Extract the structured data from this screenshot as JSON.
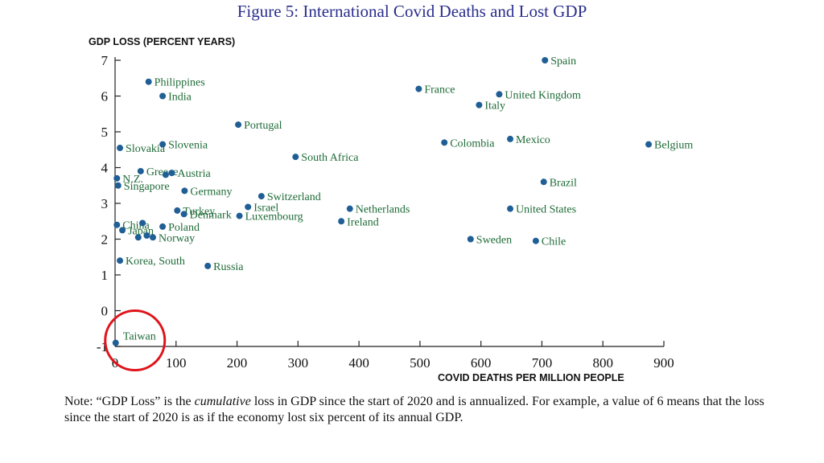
{
  "title": "Figure 5: International Covid Deaths and Lost GDP",
  "chart_data": {
    "type": "scatter",
    "title": "Figure 5: International Covid Deaths and Lost GDP",
    "xlabel": "COVID DEATHS PER MILLION PEOPLE",
    "ylabel": "GDP LOSS (PERCENT YEARS)",
    "xlim": [
      0,
      900
    ],
    "ylim": [
      -1,
      7
    ],
    "x_ticks": [
      "0",
      "100",
      "200",
      "300",
      "400",
      "500",
      "600",
      "700",
      "800",
      "900"
    ],
    "y_ticks": [
      "-1",
      "0",
      "1",
      "2",
      "3",
      "4",
      "5",
      "6",
      "7"
    ],
    "grid": false,
    "point_color": "#1f5f96",
    "label_color": "#1f6b38",
    "points": [
      {
        "label": "Spain",
        "x": 705,
        "y": 7.0
      },
      {
        "label": "Philippines",
        "x": 55,
        "y": 6.4
      },
      {
        "label": "India",
        "x": 78,
        "y": 6.0
      },
      {
        "label": "France",
        "x": 498,
        "y": 6.2
      },
      {
        "label": "United Kingdom",
        "x": 630,
        "y": 6.05
      },
      {
        "label": "Italy",
        "x": 597,
        "y": 5.75
      },
      {
        "label": "Portugal",
        "x": 202,
        "y": 5.2
      },
      {
        "label": "Slovakia",
        "x": 8,
        "y": 4.55
      },
      {
        "label": "Slovenia",
        "x": 78,
        "y": 4.65
      },
      {
        "label": "Colombia",
        "x": 540,
        "y": 4.7
      },
      {
        "label": "Mexico",
        "x": 648,
        "y": 4.8
      },
      {
        "label": "Belgium",
        "x": 875,
        "y": 4.65
      },
      {
        "label": "South Africa",
        "x": 296,
        "y": 4.3
      },
      {
        "label": "Greece",
        "x": 42,
        "y": 3.9
      },
      {
        "label": "Austria",
        "x": 93,
        "y": 3.85
      },
      {
        "label": "N.Z.",
        "x": 3,
        "y": 3.7
      },
      {
        "label": "Singapore",
        "x": 5,
        "y": 3.5
      },
      {
        "label": "Brazil",
        "x": 703,
        "y": 3.6
      },
      {
        "label": "Germany",
        "x": 114,
        "y": 3.35
      },
      {
        "label": "Switzerland",
        "x": 240,
        "y": 3.2
      },
      {
        "label": "Israel",
        "x": 218,
        "y": 2.9
      },
      {
        "label": "Netherlands",
        "x": 385,
        "y": 2.85
      },
      {
        "label": "United States",
        "x": 648,
        "y": 2.85
      },
      {
        "label": "Turkey",
        "x": 102,
        "y": 2.8
      },
      {
        "label": "Denmark",
        "x": 113,
        "y": 2.7
      },
      {
        "label": "Luxembourg",
        "x": 204,
        "y": 2.65
      },
      {
        "label": "Ireland",
        "x": 371,
        "y": 2.5
      },
      {
        "label": "China",
        "x": 3,
        "y": 2.4
      },
      {
        "label": "Poland",
        "x": 78,
        "y": 2.35
      },
      {
        "label": "Japan",
        "x": 12,
        "y": 2.25
      },
      {
        "label": "Norway",
        "x": 62,
        "y": 2.05
      },
      {
        "label": "Sweden",
        "x": 583,
        "y": 2.0
      },
      {
        "label": "Chile",
        "x": 690,
        "y": 1.95
      },
      {
        "label": "Korea, South",
        "x": 8,
        "y": 1.4
      },
      {
        "label": "Russia",
        "x": 152,
        "y": 1.25
      },
      {
        "label": "Taiwan",
        "x": 1,
        "y": -0.9
      }
    ],
    "extra_points": [
      {
        "x": 45,
        "y": 2.45
      },
      {
        "x": 38,
        "y": 2.05
      },
      {
        "x": 52,
        "y": 2.1
      },
      {
        "x": 83,
        "y": 3.8
      }
    ],
    "annotation": {
      "type": "circle",
      "target": "Taiwan",
      "color": "#e0141b"
    }
  },
  "note": {
    "part1": "Note: “GDP Loss” is the ",
    "emphasis": "cumulative",
    "part2": " loss in GDP since the start of 2020 and is annualized.  For example, a value of 6 means that the loss since the start of 2020 is as if the economy lost six percent of its annual GDP."
  }
}
